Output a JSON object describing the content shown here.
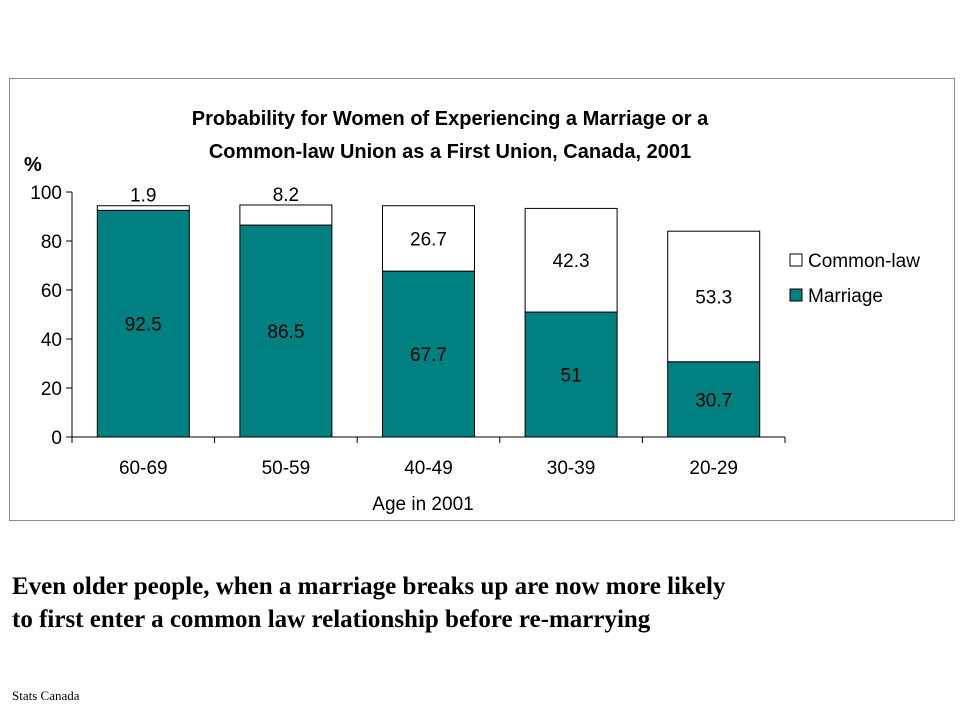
{
  "chart_data": {
    "type": "bar",
    "stacked": true,
    "title": [
      "Probability for Women of Experiencing a Marriage or a",
      "Common-law Union as a First Union, Canada, 2001"
    ],
    "ylabel": "%",
    "xlabel": "Age in 2001",
    "ylim": [
      0,
      100
    ],
    "yticks": [
      0,
      20,
      40,
      60,
      80,
      100
    ],
    "categories": [
      "60-69",
      "50-59",
      "40-49",
      "30-39",
      "20-29"
    ],
    "series": [
      {
        "name": "Marriage",
        "values": [
          92.5,
          86.5,
          67.7,
          51,
          30.7
        ],
        "labels": [
          "92.5",
          "86.5",
          "67.7",
          "51",
          "30.7"
        ],
        "color": "#008080"
      },
      {
        "name": "Common-law",
        "values": [
          1.9,
          8.2,
          26.7,
          42.3,
          53.3
        ],
        "labels": [
          "1.9",
          "8.2",
          "26.7",
          "42.3",
          "53.3"
        ],
        "color": "#ffffff"
      }
    ],
    "legend": {
      "placement": "right",
      "entries": [
        "Common-law",
        "Marriage"
      ]
    },
    "grid": false
  },
  "caption": {
    "line1": "Even older people, when a marriage breaks up are now more likely",
    "line2": "to first enter a common law relationship before re-marrying"
  },
  "source": "Stats Canada"
}
